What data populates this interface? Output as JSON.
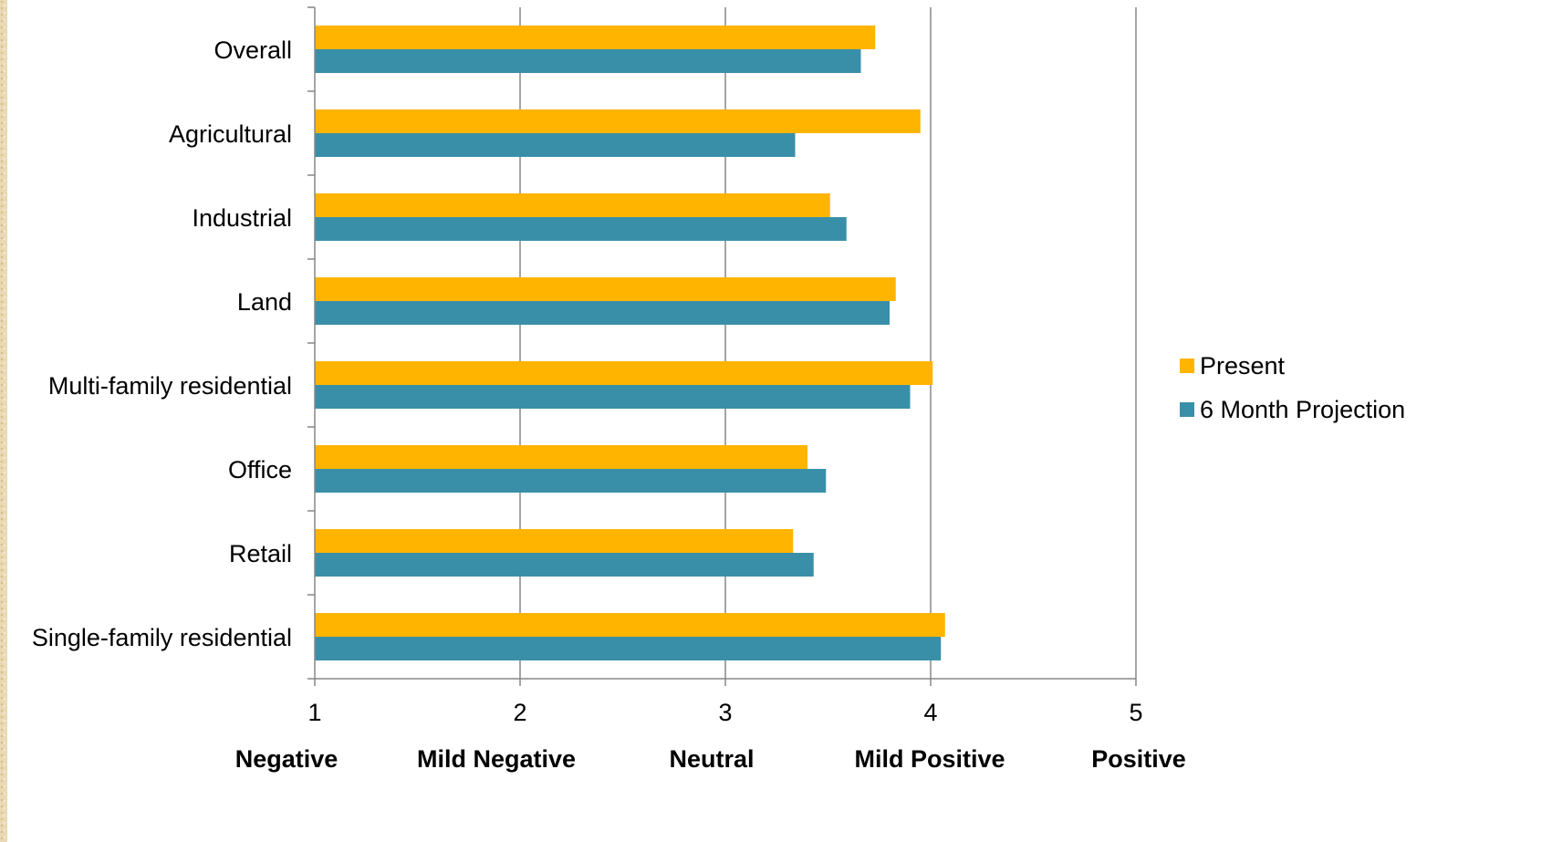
{
  "chart_data": {
    "type": "bar",
    "orientation": "horizontal",
    "categories": [
      "Overall",
      "Agricultural",
      "Industrial",
      "Land",
      "Multi-family residential",
      "Office",
      "Retail",
      "Single-family residential"
    ],
    "series": [
      {
        "name": "Present",
        "color": "#ffb400",
        "values": [
          3.73,
          3.95,
          3.51,
          3.83,
          4.01,
          3.4,
          3.33,
          4.07
        ]
      },
      {
        "name": "6 Month Projection",
        "color": "#3a8fa8",
        "values": [
          3.66,
          3.34,
          3.59,
          3.8,
          3.9,
          3.49,
          3.43,
          4.05
        ]
      }
    ],
    "xlim": [
      1,
      5
    ],
    "xticks": [
      "1",
      "2",
      "3",
      "4",
      "5"
    ],
    "xtick_categories": [
      "Negative",
      "Mild Negative",
      "Neutral",
      "Mild Positive",
      "Positive"
    ],
    "grid": "vertical",
    "legend_position": "right",
    "title": "",
    "xlabel": "",
    "ylabel": ""
  },
  "colors": {
    "grid": "#878787",
    "axis": "#878787",
    "border_strip": "#e9d9b4"
  }
}
